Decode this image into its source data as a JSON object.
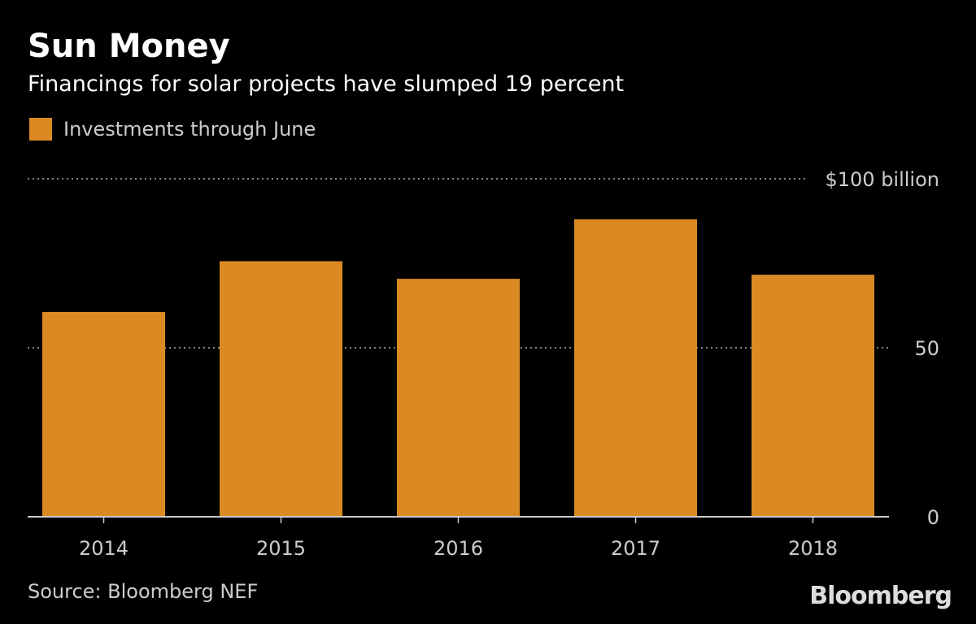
{
  "title": "Sun Money",
  "subtitle": "Financings for solar projects have slumped 19 percent",
  "source": "Source: Bloomberg NEF",
  "logo": "Bloomberg",
  "colors": {
    "bar": "#DB8A23",
    "background": "#000000"
  },
  "chart_data": {
    "type": "bar",
    "categories": [
      "2014",
      "2015",
      "2016",
      "2017",
      "2018"
    ],
    "series": [
      {
        "name": "Investments through June",
        "values": [
          60.6,
          75.6,
          70.4,
          88.0,
          71.6
        ]
      }
    ],
    "ylim": [
      0,
      100
    ],
    "yticks": [
      0,
      50,
      100
    ],
    "ytick_labels": [
      "0",
      "50",
      "$100 billion"
    ],
    "grid": true,
    "legend": "top-left"
  }
}
